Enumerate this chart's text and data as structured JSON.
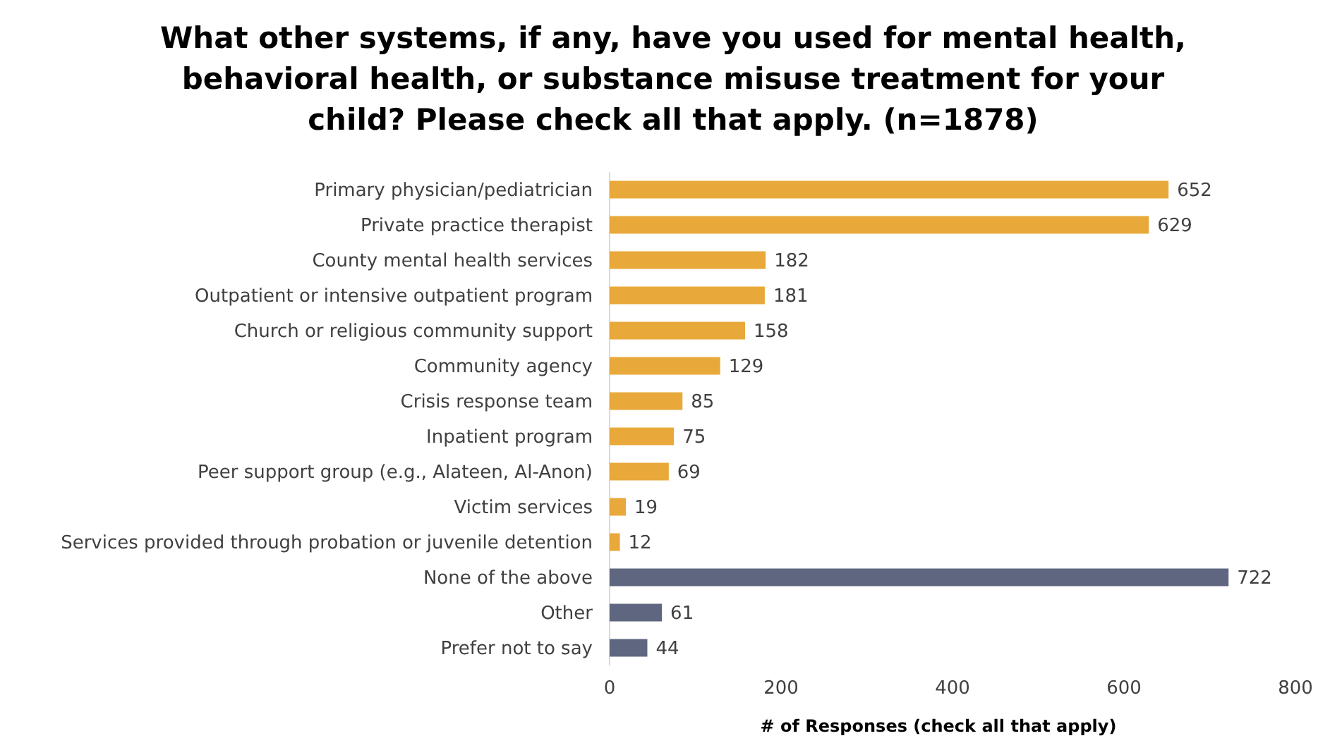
{
  "chart_data": {
    "type": "bar",
    "orientation": "horizontal",
    "title": "What other systems, if any, have you used for mental health, behavioral health, or substance misuse treatment for your child? Please check all that apply. (n=1878)",
    "xlabel": "# of Responses (check all that apply)",
    "categories": [
      "Primary physician/pediatrician",
      "Private practice therapist",
      "County mental health services",
      "Outpatient or intensive outpatient program",
      "Church or religious community support",
      "Community agency",
      "Crisis response team",
      "Inpatient program",
      "Peer support group (e.g., Alateen, Al-Anon)",
      "Victim services",
      "Services provided through probation or juvenile detention",
      "None of the above",
      "Other",
      "Prefer not to say"
    ],
    "values": [
      652,
      629,
      182,
      181,
      158,
      129,
      85,
      75,
      69,
      19,
      12,
      722,
      61,
      44
    ],
    "colors": [
      "#e8a93a",
      "#e8a93a",
      "#e8a93a",
      "#e8a93a",
      "#e8a93a",
      "#e8a93a",
      "#e8a93a",
      "#e8a93a",
      "#e8a93a",
      "#e8a93a",
      "#e8a93a",
      "#5f6680",
      "#5f6680",
      "#5f6680"
    ],
    "xlim": [
      0,
      800
    ],
    "xticks": [
      0,
      200,
      400,
      600,
      800
    ],
    "grid": false,
    "data_labels": true
  }
}
